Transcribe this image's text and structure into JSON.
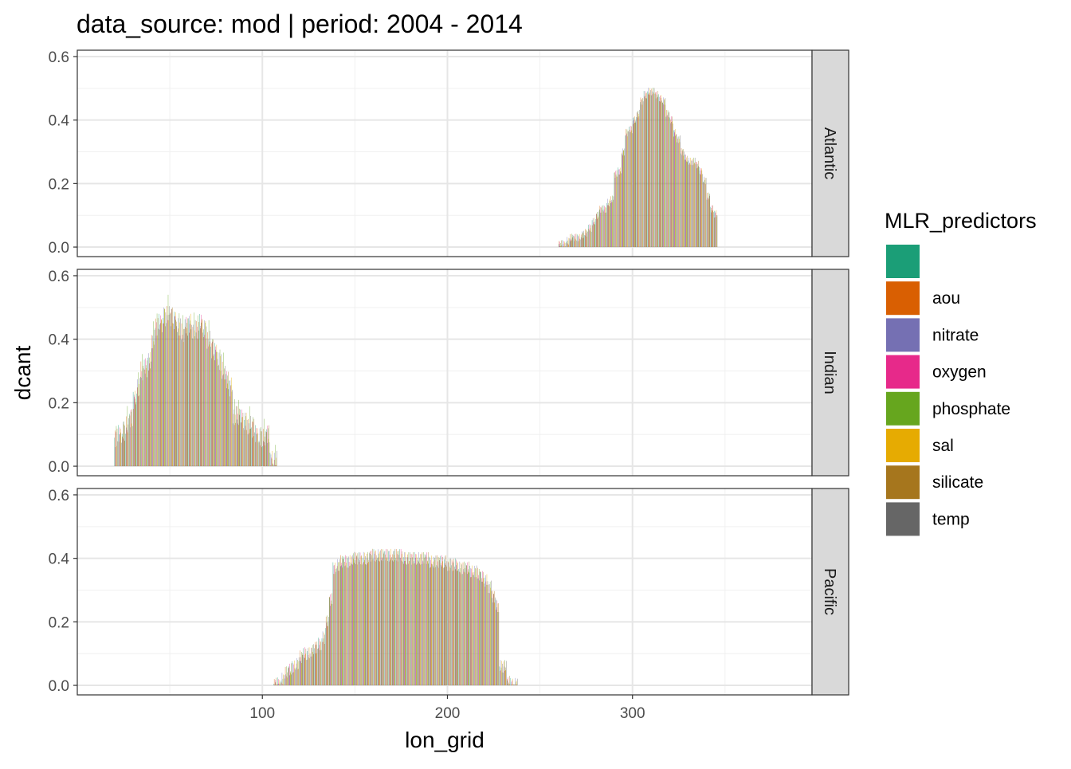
{
  "chart_data": {
    "type": "bar",
    "title": "data_source: mod | period: 2004 - 2014",
    "xlabel": "lon_grid",
    "ylabel": "dcant",
    "xlim": [
      0,
      397
    ],
    "ylim": [
      -0.03,
      0.62
    ],
    "x_ticks": [
      "100",
      "200",
      "300"
    ],
    "x_tick_values": [
      100,
      200,
      300
    ],
    "y_ticks": [
      "0.0",
      "0.2",
      "0.4",
      "0.6"
    ],
    "y_tick_values": [
      0,
      0.2,
      0.4,
      0.6
    ],
    "grid": true,
    "legend_position": "right",
    "legend_title": "MLR_predictors",
    "series_labels": [
      "",
      "aou",
      "nitrate",
      "oxygen",
      "phosphate",
      "sal",
      "silicate",
      "temp"
    ],
    "series_colors": [
      "#1B9E77",
      "#D95F02",
      "#7570B3",
      "#E7298A",
      "#66A61E",
      "#E6AB02",
      "#A6761D",
      "#666666"
    ],
    "panels": [
      {
        "strip": "Atlantic",
        "lon_start": 261,
        "lon_step": 2,
        "values": [
          0.01,
          0.01,
          0.02,
          0.03,
          0.03,
          0.03,
          0.04,
          0.045,
          0.06,
          0.08,
          0.1,
          0.12,
          0.12,
          0.14,
          0.15,
          0.23,
          0.24,
          0.3,
          0.36,
          0.37,
          0.4,
          0.42,
          0.46,
          0.48,
          0.49,
          0.49,
          0.48,
          0.47,
          0.46,
          0.42,
          0.4,
          0.36,
          0.34,
          0.3,
          0.28,
          0.27,
          0.27,
          0.26,
          0.24,
          0.21,
          0.16,
          0.12,
          0.105
        ],
        "spread": 0.012
      },
      {
        "strip": "Indian",
        "lon_start": 21,
        "lon_step": 2,
        "values": [
          0.09,
          0.1,
          0.11,
          0.13,
          0.15,
          0.21,
          0.25,
          0.3,
          0.31,
          0.33,
          0.4,
          0.44,
          0.45,
          0.47,
          0.48,
          0.47,
          0.46,
          0.44,
          0.42,
          0.44,
          0.45,
          0.43,
          0.43,
          0.45,
          0.43,
          0.4,
          0.37,
          0.36,
          0.33,
          0.3,
          0.27,
          0.25,
          0.16,
          0.16,
          0.15,
          0.14,
          0.13,
          0.12,
          0.1,
          0.09,
          0.09,
          0.1,
          0.02,
          0.02
        ],
        "spread": 0.03
      },
      {
        "strip": "Pacific",
        "lon_start": 107,
        "lon_step": 2,
        "values": [
          0.005,
          0.005,
          0.02,
          0.04,
          0.05,
          0.06,
          0.07,
          0.09,
          0.1,
          0.1,
          0.11,
          0.12,
          0.13,
          0.15,
          0.2,
          0.27,
          0.37,
          0.38,
          0.39,
          0.39,
          0.39,
          0.4,
          0.4,
          0.4,
          0.4,
          0.4,
          0.41,
          0.41,
          0.41,
          0.41,
          0.41,
          0.41,
          0.41,
          0.41,
          0.41,
          0.4,
          0.4,
          0.4,
          0.4,
          0.4,
          0.4,
          0.4,
          0.39,
          0.39,
          0.39,
          0.39,
          0.39,
          0.38,
          0.38,
          0.38,
          0.37,
          0.37,
          0.37,
          0.36,
          0.36,
          0.35,
          0.34,
          0.33,
          0.31,
          0.28,
          0.25,
          0.06,
          0.06,
          0.01,
          0.005,
          0.005
        ],
        "spread": 0.02
      }
    ]
  }
}
